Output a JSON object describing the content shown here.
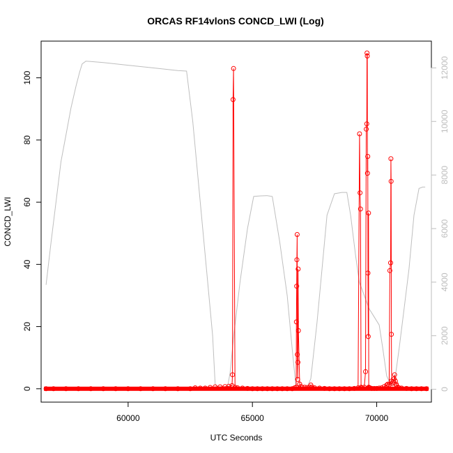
{
  "chart_data": {
    "type": "line",
    "title": "ORCAS RF14vlonS CONCD_LWI (Log)",
    "xlabel": "UTC Seconds",
    "ylabel": "CONCD_LWI",
    "ylabel_right": "",
    "xlim": [
      56500,
      72200
    ],
    "ylim": [
      -4.3,
      111.8
    ],
    "ylim_right": [
      -480,
      13000
    ],
    "x_ticks": [
      60000,
      65000,
      70000
    ],
    "y_ticks": [
      0,
      20,
      40,
      60,
      80,
      100
    ],
    "y_right_ticks": [
      0,
      2000,
      4000,
      6000,
      8000,
      10000,
      12000
    ],
    "x_tick_labels": [
      "60000",
      "65000",
      "70000"
    ],
    "y_tick_labels": [
      "0",
      "20",
      "40",
      "60",
      "80",
      "100"
    ],
    "y_right_tick_labels": [
      "0",
      "2000",
      "4000",
      "6000",
      "8000",
      "10000",
      "12000"
    ],
    "colors": {
      "concd": "#ff0000",
      "altitude": "#bebebe"
    },
    "series": [
      {
        "axis": "right",
        "style": "line",
        "x": [
          56700,
          56900,
          57100,
          57300,
          57500,
          57700,
          57900,
          58050,
          58150,
          58300,
          58500,
          59000,
          60000,
          61000,
          62000,
          62350,
          62600,
          62900,
          63200,
          63400,
          63500,
          63600,
          63750,
          63900,
          64000,
          64100,
          64250,
          64500,
          64800,
          65050,
          65300,
          65600,
          65800,
          66100,
          66400,
          66600,
          66750,
          66900,
          67050,
          67200,
          67350,
          67600,
          67800,
          68000,
          68300,
          68600,
          68800,
          68950,
          69150,
          69300,
          69500,
          69700,
          69900,
          70100,
          70250,
          70400,
          70550,
          70700,
          70900,
          71100,
          71300,
          71500,
          71700,
          71850,
          71950
        ],
        "values": [
          3900,
          5500,
          7000,
          8500,
          9500,
          10500,
          11300,
          11850,
          12150,
          12250,
          12240,
          12200,
          12100,
          12000,
          11900,
          11880,
          10000,
          7000,
          4000,
          2000,
          200,
          80,
          50,
          40,
          100,
          600,
          2000,
          4000,
          6000,
          7200,
          7220,
          7230,
          7200,
          5500,
          3500,
          1500,
          100,
          50,
          40,
          60,
          400,
          2500,
          4500,
          6500,
          7300,
          7350,
          7350,
          6500,
          5000,
          4000,
          3500,
          3000,
          2700,
          2400,
          1500,
          500,
          200,
          150,
          1500,
          3000,
          4500,
          6500,
          7500,
          7550,
          7550
        ]
      },
      {
        "name": "",
        "axis": "left",
        "style": "points-line",
        "x": [
          56700,
          57000,
          57500,
          58000,
          58500,
          59000,
          59500,
          60000,
          60500,
          61000,
          61500,
          62000,
          62500,
          62700,
          62900,
          63100,
          63300,
          63500,
          63700,
          63900,
          64050,
          64180,
          64200,
          64220,
          64240,
          64300,
          64400,
          64600,
          64800,
          65000,
          65200,
          65400,
          65600,
          65800,
          66000,
          66200,
          66400,
          66600,
          66700,
          66760,
          66770,
          66780,
          66790,
          66800,
          66810,
          66820,
          66830,
          66840,
          66850,
          66900,
          66950,
          67000,
          67100,
          67200,
          67300,
          67350,
          67400,
          67500,
          67700,
          67900,
          68100,
          68300,
          68500,
          68700,
          68900,
          69100,
          69250,
          69310,
          69330,
          69350,
          69370,
          69400,
          69500,
          69550,
          69580,
          69600,
          69610,
          69620,
          69630,
          69640,
          69650,
          69660,
          69670,
          69680,
          69700,
          69720,
          69750,
          69800,
          69900,
          70000,
          70100,
          70200,
          70300,
          70400,
          70450,
          70500,
          70530,
          70560,
          70570,
          70580,
          70590,
          70600,
          70620,
          70650,
          70700,
          70720,
          70750,
          70780,
          70800,
          70850,
          70900,
          71000,
          71200,
          71400,
          71600,
          71800,
          72000
        ],
        "values": [
          0,
          0,
          0,
          0,
          0,
          0,
          0,
          0,
          0,
          0,
          0,
          0,
          0,
          0.3,
          0.2,
          0.2,
          0.4,
          0.6,
          0.6,
          0.7,
          0.8,
          1,
          4.5,
          93,
          103,
          0.5,
          0.3,
          0.2,
          0.1,
          0,
          0,
          0,
          0,
          0,
          0,
          0,
          0,
          0,
          0.3,
          0.5,
          21.5,
          33,
          41.5,
          49.6,
          11,
          3,
          8.5,
          38.5,
          18.7,
          1.5,
          0.7,
          0.5,
          0.5,
          0.4,
          0.5,
          1.2,
          0.5,
          0.3,
          0.2,
          0.1,
          0,
          0,
          0,
          0,
          0,
          0.1,
          0.3,
          82,
          63,
          57.8,
          0.5,
          0.3,
          0.5,
          5.5,
          83.5,
          85.2,
          108,
          107,
          69.3,
          74.7,
          37.2,
          16.8,
          56.5,
          0.5,
          0.4,
          0.3,
          0.2,
          0.1,
          0.1,
          0.1,
          0.2,
          0.3,
          0.7,
          1.2,
          1.5,
          1.3,
          38,
          40.5,
          74,
          66.7,
          17.5,
          2.5,
          1.7,
          2.2,
          3.2,
          4.5,
          2.5,
          1.5,
          1,
          0.5,
          0.3,
          0.2,
          0.1,
          0,
          0,
          0,
          0
        ]
      }
    ]
  }
}
